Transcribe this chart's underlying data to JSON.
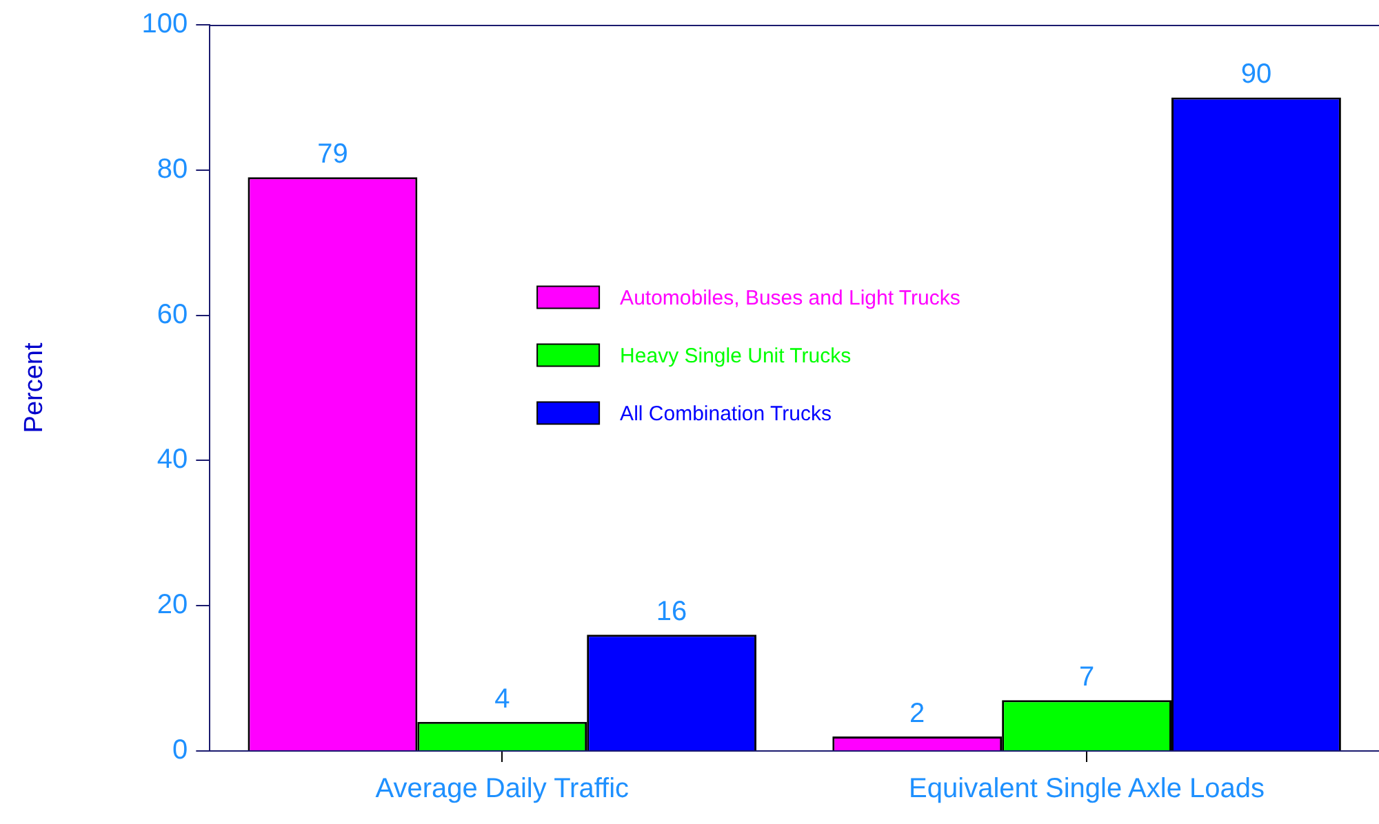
{
  "chart_data": {
    "type": "bar",
    "ylabel": "Percent",
    "categories": [
      "Average Daily Traffic",
      "Equivalent Single Axle Loads"
    ],
    "series": [
      {
        "name": "Automobiles, Buses and Light Trucks",
        "color": "#ff00ff",
        "values": [
          79,
          2
        ]
      },
      {
        "name": "Heavy Single Unit Trucks",
        "color": "#00ff00",
        "values": [
          4,
          7
        ]
      },
      {
        "name": "All Combination Trucks",
        "color": "#0000ff",
        "values": [
          16,
          90
        ]
      }
    ],
    "ylim": [
      0,
      100
    ],
    "yticks": [
      0,
      20,
      40,
      60,
      80,
      100
    ],
    "grid": false,
    "legend": "center",
    "data_labels": true
  }
}
